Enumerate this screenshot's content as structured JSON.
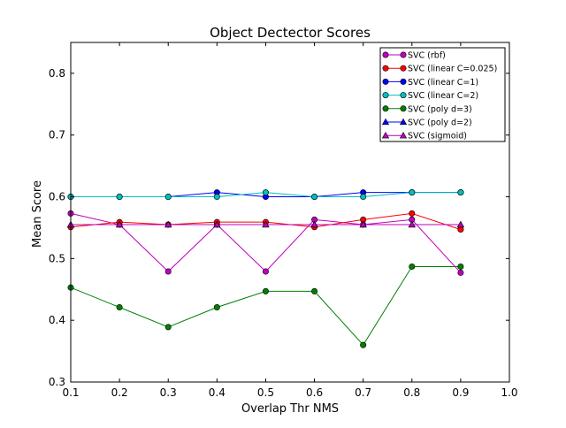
{
  "chart_data": {
    "type": "line",
    "title": "Object Dectector Scores",
    "xlabel": "Overlap Thr NMS",
    "ylabel": "Mean Score",
    "xlim": [
      0.1,
      1.0
    ],
    "ylim": [
      0.3,
      0.85
    ],
    "xticks": [
      "0.1",
      "0.2",
      "0.3",
      "0.4",
      "0.5",
      "0.6",
      "0.7",
      "0.8",
      "0.9",
      "1.0"
    ],
    "yticks": [
      "0.3",
      "0.4",
      "0.5",
      "0.6",
      "0.7",
      "0.8"
    ],
    "grid": false,
    "legend_position": "top-right",
    "x": [
      0.1,
      0.2,
      0.3,
      0.4,
      0.5,
      0.6,
      0.7,
      0.8,
      0.9
    ],
    "series": [
      {
        "name": "SVC (rbf)",
        "color": "#bf00bf",
        "marker": "circle",
        "values": [
          0.573,
          0.555,
          0.479,
          0.555,
          0.479,
          0.563,
          0.555,
          0.563,
          0.477
        ]
      },
      {
        "name": "SVC (linear C=0.025)",
        "color": "#ff0000",
        "marker": "circle",
        "values": [
          0.551,
          0.559,
          0.555,
          0.559,
          0.559,
          0.551,
          0.563,
          0.573,
          0.547
        ]
      },
      {
        "name": "SVC (linear C=1)",
        "color": "#0000ff",
        "marker": "circle",
        "values": [
          0.6,
          0.6,
          0.6,
          0.607,
          0.6,
          0.6,
          0.607,
          0.607,
          0.607
        ]
      },
      {
        "name": "SVC (linear C=2)",
        "color": "#00bfbf",
        "marker": "circle",
        "values": [
          0.6,
          0.6,
          0.6,
          0.6,
          0.607,
          0.6,
          0.6,
          0.607,
          0.607
        ]
      },
      {
        "name": "SVC (poly d=3)",
        "color": "#008000",
        "marker": "circle",
        "values": [
          0.453,
          0.421,
          0.389,
          0.421,
          0.447,
          0.447,
          0.36,
          0.487,
          0.487
        ]
      },
      {
        "name": "SVC (poly d=2)",
        "color": "#0000ff",
        "marker": "triangle",
        "values": [
          0.555,
          0.555,
          0.555,
          0.555,
          0.555,
          0.555,
          0.555,
          0.555,
          0.555
        ]
      },
      {
        "name": "SVC (sigmoid)",
        "color": "#bf00bf",
        "marker": "triangle",
        "values": [
          0.555,
          0.555,
          0.555,
          0.555,
          0.555,
          0.555,
          0.555,
          0.555,
          0.555
        ]
      }
    ]
  }
}
